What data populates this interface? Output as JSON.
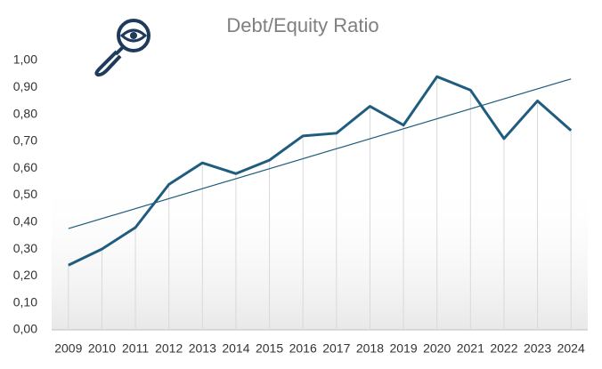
{
  "chart_data": {
    "type": "line",
    "title": "Debt/Equity Ratio",
    "categories": [
      "2009",
      "2010",
      "2011",
      "2012",
      "2013",
      "2014",
      "2015",
      "2016",
      "2017",
      "2018",
      "2019",
      "2020",
      "2021",
      "2022",
      "2023",
      "2024"
    ],
    "series": [
      {
        "name": "Debt/Equity Ratio",
        "color": "#1f5c7d",
        "values": [
          0.24,
          0.3,
          0.38,
          0.54,
          0.62,
          0.58,
          0.63,
          0.72,
          0.73,
          0.83,
          0.76,
          0.94,
          0.89,
          0.71,
          0.85,
          0.74
        ]
      }
    ],
    "ylim": [
      0,
      1
    ],
    "yticks": [
      {
        "value": 0,
        "label": "0,00"
      },
      {
        "value": 0.1,
        "label": "0,10"
      },
      {
        "value": 0.2,
        "label": "0,20"
      },
      {
        "value": 0.3,
        "label": "0,30"
      },
      {
        "value": 0.4,
        "label": "0,40"
      },
      {
        "value": 0.5,
        "label": "0,50"
      },
      {
        "value": 0.6,
        "label": "0,60"
      },
      {
        "value": 0.7,
        "label": "0,70"
      },
      {
        "value": 0.8,
        "label": "0,80"
      },
      {
        "value": 0.9,
        "label": "0,90"
      },
      {
        "value": 1,
        "label": "1,00"
      }
    ],
    "trendline": true,
    "drop_lines": true
  }
}
